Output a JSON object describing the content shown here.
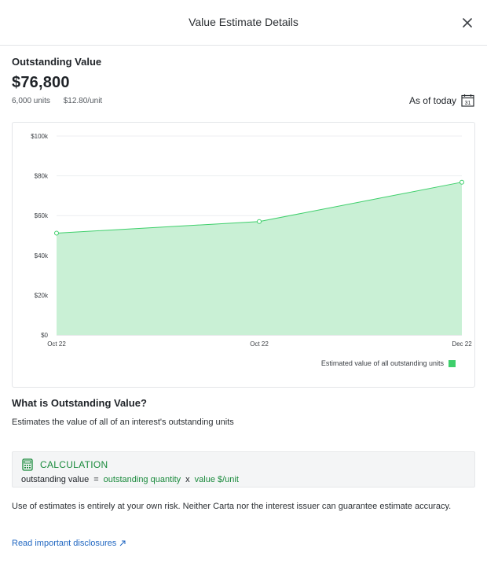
{
  "modal": {
    "title": "Value Estimate Details",
    "close_icon": "close-icon"
  },
  "summary": {
    "heading": "Outstanding Value",
    "value": "$76,800",
    "units": "6,000 units",
    "price_per_unit": "$12.80/unit",
    "as_of": "As of today",
    "calendar_icon": "calendar-icon",
    "calendar_day": "31"
  },
  "chart_data": {
    "type": "area",
    "x": [
      "Oct 22",
      "Oct 22",
      "Dec 22"
    ],
    "series": [
      {
        "name": "Estimated value of all outstanding units",
        "values": [
          51200,
          57000,
          76800
        ],
        "color": "#3ecf6b"
      }
    ],
    "yticks": [
      "$0",
      "$20k",
      "$40k",
      "$60k",
      "$80k",
      "$100k"
    ],
    "ylim": [
      0,
      100000
    ],
    "grid": true,
    "legend": "bottom-right"
  },
  "info": {
    "heading": "What is Outstanding Value?",
    "description": "Estimates the value of all of an interest's outstanding units"
  },
  "calculation": {
    "icon": "calculator-icon",
    "label": "CALCULATION",
    "lhs": "outstanding value",
    "eq": "=",
    "term1": "outstanding quantity",
    "times": "x",
    "term2": "value $/unit"
  },
  "footer": {
    "disclaimer": "Use of estimates is entirely at your own risk. Neither Carta nor the interest issuer can guarantee estimate accuracy.",
    "link": "Read important disclosures",
    "link_icon": "external-link-icon"
  },
  "colors": {
    "accent_green": "#1a8a3c",
    "area_fill": "#c9f0d5",
    "line": "#3ecf6b",
    "link_blue": "#1f66c1"
  }
}
